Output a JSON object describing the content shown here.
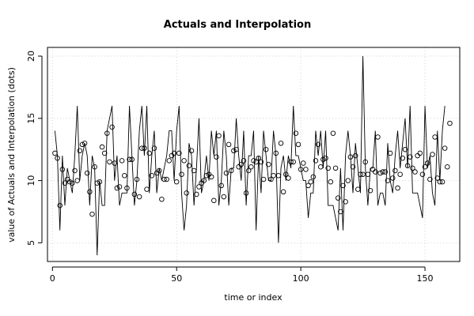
{
  "chart_data": {
    "type": "line",
    "title": "Actuals and Interpolation",
    "xlabel": "time or index",
    "ylabel": "value of Actuals and Interpolation (dots)",
    "xlim": [
      -2,
      164
    ],
    "ylim": [
      3.5,
      20.7
    ],
    "xticks": [
      0,
      50,
      100,
      150
    ],
    "yticks": [
      5,
      10,
      15,
      20
    ],
    "grid": true,
    "legend": "none",
    "series": [
      {
        "kind": "line",
        "values": [
          14,
          12,
          6,
          12,
          8,
          11,
          10,
          9,
          12,
          16,
          10,
          12,
          13,
          12,
          8,
          12,
          11,
          4,
          10,
          8,
          8,
          14,
          15,
          16,
          10,
          12,
          8,
          9,
          9,
          9,
          16,
          12,
          8,
          10,
          14,
          16,
          12,
          16,
          9,
          12,
          14,
          9,
          11,
          10,
          11,
          12,
          14,
          14,
          10,
          14,
          16,
          9,
          6,
          8,
          13,
          12,
          8,
          11,
          15,
          9,
          10,
          12,
          10,
          14,
          12,
          14,
          8,
          10,
          14,
          12,
          8,
          11,
          11,
          15,
          12,
          10,
          14,
          8,
          12,
          12,
          14,
          6,
          12,
          9,
          14,
          12,
          10,
          10,
          14,
          12,
          5,
          11,
          12,
          10,
          12,
          11,
          16,
          12,
          12,
          11,
          10,
          10,
          7,
          9,
          9,
          14,
          12,
          14,
          11,
          14,
          8,
          8,
          8,
          7,
          6,
          11,
          6,
          12,
          14,
          12,
          9,
          13,
          11,
          9,
          20,
          11,
          8,
          11,
          11,
          14,
          8,
          9,
          9,
          8,
          13,
          10,
          9,
          12,
          14,
          11,
          13,
          15,
          11,
          16,
          9,
          9,
          9,
          8,
          7,
          16,
          11,
          12,
          9,
          8,
          14,
          10,
          14,
          16
        ],
        "x_start": 1
      },
      {
        "kind": "dots",
        "values": [
          12.2,
          11.8,
          8.0,
          10.9,
          9.8,
          10.1,
          9.9,
          9.8,
          10.8,
          10.0,
          12.4,
          12.9,
          13.0,
          10.6,
          9.1,
          7.3,
          11.1,
          9.8,
          9.9,
          12.7,
          12.2,
          13.8,
          11.5,
          14.3,
          11.4,
          9.4,
          9.5,
          11.6,
          10.4,
          9.4,
          11.7,
          11.7,
          8.9,
          10.1,
          8.7,
          12.6,
          12.6,
          9.3,
          12.2,
          10.4,
          12.6,
          10.6,
          10.8,
          8.5,
          10.1,
          10.1,
          11.6,
          12.0,
          12.2,
          9.9,
          12.2,
          10.5,
          11.6,
          9.0,
          11.2,
          12.4,
          10.8,
          8.9,
          9.5,
          9.8,
          10.0,
          10.4,
          10.5,
          10.3,
          8.4,
          11.9,
          13.6,
          9.6,
          8.7,
          10.6,
          12.9,
          10.8,
          12.4,
          12.5,
          11.1,
          11.3,
          11.6,
          9.0,
          10.8,
          11.1,
          11.6,
          11.5,
          11.8,
          11.5,
          10.1,
          12.5,
          11.3,
          10.1,
          10.4,
          12.2,
          10.4,
          13.0,
          9.1,
          10.5,
          10.2,
          11.5,
          11.5,
          13.8,
          12.9,
          10.9,
          11.4,
          10.9,
          9.6,
          9.9,
          10.3,
          11.6,
          12.9,
          11.1,
          11.7,
          11.8,
          11.0,
          9.9,
          13.8,
          11.0,
          8.6,
          7.5,
          9.6,
          8.3,
          10.0,
          11.9,
          11.1,
          12.0,
          9.3,
          10.5,
          10.5,
          11.5,
          10.5,
          9.2,
          10.9,
          10.7,
          13.5,
          10.6,
          10.7,
          10.7,
          10.0,
          12.2,
          10.2,
          10.8,
          9.4,
          10.5,
          11.8,
          12.5,
          11.2,
          11.9,
          11.0,
          10.7,
          12.0,
          12.2,
          10.5,
          11.1,
          11.4,
          10.1,
          12.1,
          13.5,
          10.2,
          9.9,
          9.9,
          12.6,
          11.1,
          14.6
        ],
        "x_start": 1
      }
    ]
  }
}
